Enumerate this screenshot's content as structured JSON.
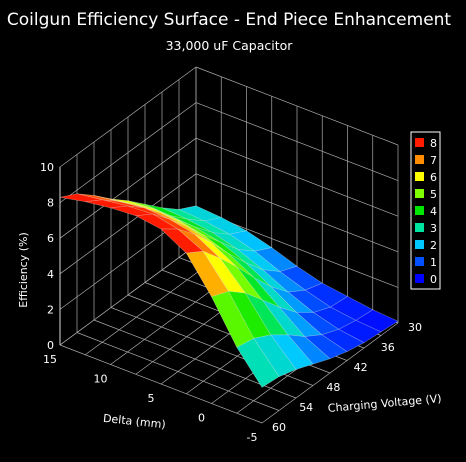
{
  "chart_data": {
    "type": "surface3d",
    "title": "Coilgun Efficiency Surface - End Piece Enhancement",
    "subtitle": "33,000 uF Capacitor",
    "zlabel": "Efficiency (%)",
    "ylabel": "Delta (mm)",
    "xlabel": "Charging Voltage (V)",
    "z_ticks": [
      "0",
      "2",
      "4",
      "6",
      "8",
      "10"
    ],
    "y_ticks": [
      "15",
      "10",
      "5",
      "0",
      "-5"
    ],
    "x_ticks": [
      "30",
      "36",
      "42",
      "48",
      "54",
      "60"
    ],
    "zlim": [
      0,
      10
    ],
    "ylim": [
      -5,
      15
    ],
    "xlim": [
      30,
      60
    ],
    "legend": {
      "placement": "right",
      "levels": [
        {
          "label": "8",
          "color": "#ff1a00"
        },
        {
          "label": "7",
          "color": "#ff8c00"
        },
        {
          "label": "6",
          "color": "#ffff00"
        },
        {
          "label": "5",
          "color": "#80ff00"
        },
        {
          "label": "4",
          "color": "#00e600"
        },
        {
          "label": "3",
          "color": "#00e6a0"
        },
        {
          "label": "2",
          "color": "#00c8ff"
        },
        {
          "label": "1",
          "color": "#0050ff"
        },
        {
          "label": "0",
          "color": "#0000ff"
        }
      ]
    },
    "grid": true,
    "surface": {
      "delta": [
        15,
        12.5,
        10,
        7.5,
        5,
        2.5,
        0,
        -2.5,
        -5
      ],
      "voltage": [
        30,
        33.75,
        37.5,
        41.25,
        45,
        48.75,
        52.5,
        56.25,
        60
      ],
      "efficiency": [
        [
          2.2,
          2.7,
          3.5,
          4.4,
          5.3,
          6.1,
          7.0,
          7.8,
          8.3
        ],
        [
          2.1,
          2.6,
          3.4,
          4.3,
          5.4,
          6.3,
          7.2,
          8.0,
          8.6
        ],
        [
          1.9,
          2.4,
          3.2,
          4.2,
          5.3,
          6.4,
          7.4,
          8.2,
          8.8
        ],
        [
          1.5,
          2.0,
          2.8,
          3.9,
          5.0,
          6.2,
          7.3,
          8.3,
          8.9
        ],
        [
          1.0,
          1.4,
          2.2,
          3.3,
          4.5,
          5.8,
          7.0,
          8.0,
          8.7
        ],
        [
          0.6,
          0.9,
          1.5,
          2.5,
          3.7,
          5.0,
          6.2,
          7.3,
          7.9
        ],
        [
          0.4,
          0.5,
          0.9,
          1.6,
          2.6,
          3.7,
          4.8,
          5.6,
          6.0
        ],
        [
          0.2,
          0.3,
          0.5,
          0.9,
          1.5,
          2.3,
          3.0,
          3.5,
          3.7
        ],
        [
          0.1,
          0.2,
          0.3,
          0.5,
          0.8,
          1.2,
          1.6,
          1.9,
          2.0
        ]
      ]
    }
  }
}
